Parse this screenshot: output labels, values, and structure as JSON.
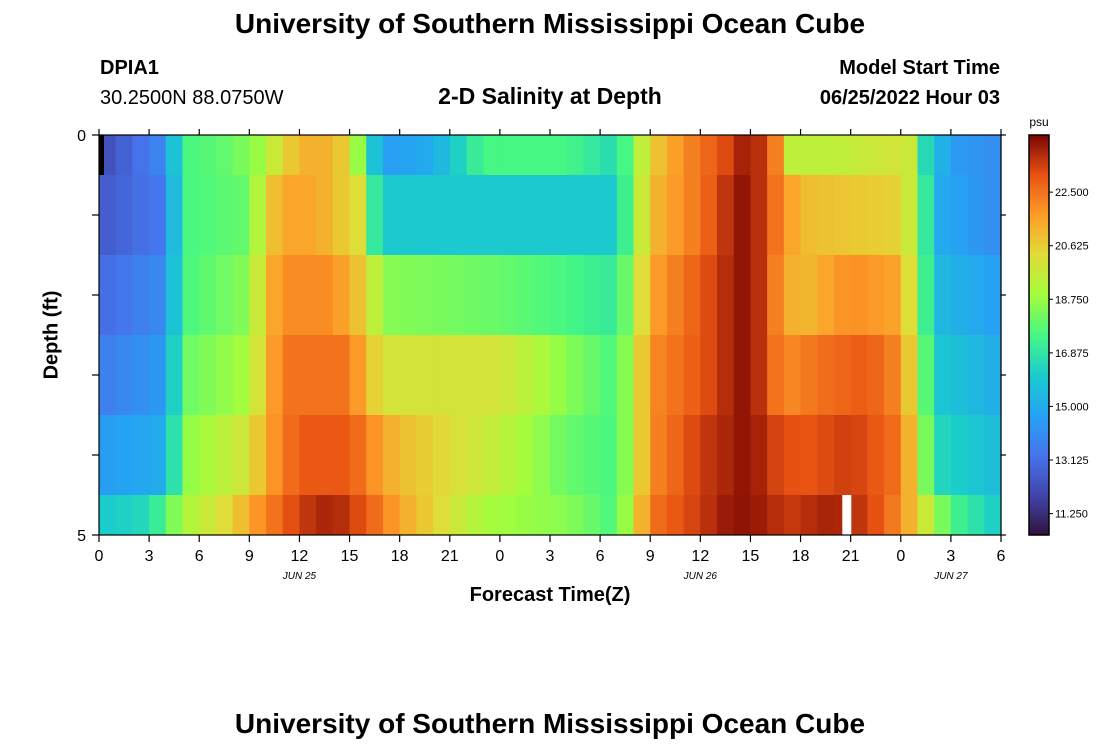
{
  "page": {
    "title_top": "University of Southern Mississippi Ocean Cube",
    "title_bottom": "University of Southern Mississippi Ocean Cube",
    "station_id": "DPIA1",
    "station_coords": "30.2500N  88.0750W",
    "plot_title": "2-D Salinity at Depth",
    "model_start_label": "Model Start Time",
    "model_start_value": "06/25/2022 Hour 03"
  },
  "chart_data": {
    "type": "heatmap",
    "title": "2-D Salinity at Depth",
    "xlabel": "Forecast Time(Z)",
    "ylabel": "Depth (ft)",
    "x_ticks": [
      "0",
      "3",
      "6",
      "9",
      "12",
      "15",
      "18",
      "21",
      "0",
      "3",
      "6",
      "9",
      "12",
      "15",
      "18",
      "21",
      "0",
      "3",
      "6"
    ],
    "date_labels": [
      {
        "text": "JUN 25",
        "hour": 12
      },
      {
        "text": "JUN 26",
        "hour": 36
      },
      {
        "text": "JUN 27",
        "hour": 51
      }
    ],
    "x_range_hours": [
      0,
      54
    ],
    "y_ticks": [
      "0",
      "5"
    ],
    "y_range": [
      0,
      5
    ],
    "depth_levels": 6,
    "colorbar": {
      "unit": "psu",
      "vmin": 10.5,
      "vmax": 24.5,
      "labels": [
        "22.500",
        "20.625",
        "18.750",
        "16.875",
        "15.000",
        "13.125",
        "11.250"
      ],
      "label_values": [
        22.5,
        20.625,
        18.75,
        16.875,
        15.0,
        13.125,
        11.25
      ]
    },
    "missing_cells": [
      {
        "row": 0,
        "hour": 0
      },
      {
        "row": 5,
        "hour": 44.5
      }
    ],
    "profiles": [
      [
        [
          0,
          12.0
        ],
        [
          4,
          14.0
        ],
        [
          5,
          17.5
        ],
        [
          8,
          18.0
        ],
        [
          10,
          19.0
        ],
        [
          11,
          20.5
        ],
        [
          13,
          21.5
        ],
        [
          15,
          20.5
        ],
        [
          16,
          17.0
        ],
        [
          17,
          14.5
        ],
        [
          20,
          15.0
        ],
        [
          23,
          17.5
        ],
        [
          28,
          17.5
        ],
        [
          31,
          16.5
        ],
        [
          32,
          18.5
        ],
        [
          33,
          20.5
        ],
        [
          35,
          22.0
        ],
        [
          38,
          23.5
        ],
        [
          39,
          24.4
        ],
        [
          40,
          23.0
        ],
        [
          41,
          21.5
        ],
        [
          41.5,
          19.5
        ],
        [
          44,
          19.5
        ],
        [
          48,
          20.0
        ],
        [
          49,
          19.5
        ],
        [
          49.5,
          16.5
        ],
        [
          51,
          14.5
        ],
        [
          54,
          14.0
        ]
      ],
      [
        [
          0,
          12.5
        ],
        [
          4,
          13.5
        ],
        [
          5,
          17.5
        ],
        [
          9,
          18.0
        ],
        [
          10,
          20.5
        ],
        [
          11,
          21.5
        ],
        [
          13,
          21.5
        ],
        [
          16,
          20.0
        ],
        [
          16.5,
          17.0
        ],
        [
          17,
          16.0
        ],
        [
          24,
          16.0
        ],
        [
          28,
          16.0
        ],
        [
          31,
          16.0
        ],
        [
          32,
          18.5
        ],
        [
          33,
          21.0
        ],
        [
          36,
          22.5
        ],
        [
          38,
          24.0
        ],
        [
          39,
          24.4
        ],
        [
          40,
          23.0
        ],
        [
          41,
          22.0
        ],
        [
          42,
          21.0
        ],
        [
          48,
          20.5
        ],
        [
          49,
          19.0
        ],
        [
          50,
          15.0
        ],
        [
          54,
          14.0
        ]
      ],
      [
        [
          0,
          13.0
        ],
        [
          4,
          14.0
        ],
        [
          5,
          17.5
        ],
        [
          9,
          18.5
        ],
        [
          10,
          21.0
        ],
        [
          11,
          22.0
        ],
        [
          14,
          22.0
        ],
        [
          16,
          20.5
        ],
        [
          17,
          18.5
        ],
        [
          24,
          18.0
        ],
        [
          28,
          17.5
        ],
        [
          31,
          17.0
        ],
        [
          32,
          19.0
        ],
        [
          33,
          21.5
        ],
        [
          36,
          23.0
        ],
        [
          38,
          24.0
        ],
        [
          39,
          24.4
        ],
        [
          40,
          23.0
        ],
        [
          41,
          21.5
        ],
        [
          42,
          21.0
        ],
        [
          45,
          22.0
        ],
        [
          48,
          21.5
        ],
        [
          49,
          19.0
        ],
        [
          50,
          15.5
        ],
        [
          54,
          14.5
        ]
      ],
      [
        [
          0,
          13.5
        ],
        [
          4,
          14.5
        ],
        [
          5,
          18.0
        ],
        [
          9,
          19.0
        ],
        [
          10,
          21.0
        ],
        [
          11,
          22.5
        ],
        [
          15,
          22.5
        ],
        [
          16,
          21.0
        ],
        [
          17,
          20.0
        ],
        [
          24,
          20.0
        ],
        [
          28,
          18.5
        ],
        [
          31,
          17.5
        ],
        [
          32,
          19.5
        ],
        [
          33,
          22.0
        ],
        [
          36,
          23.0
        ],
        [
          38,
          24.0
        ],
        [
          39,
          24.4
        ],
        [
          40,
          23.0
        ],
        [
          41,
          22.0
        ],
        [
          43,
          22.5
        ],
        [
          46,
          23.0
        ],
        [
          48,
          22.0
        ],
        [
          49,
          19.5
        ],
        [
          50,
          16.0
        ],
        [
          54,
          15.0
        ]
      ],
      [
        [
          0,
          14.5
        ],
        [
          4,
          15.0
        ],
        [
          5,
          18.5
        ],
        [
          9,
          20.0
        ],
        [
          10,
          21.5
        ],
        [
          12,
          23.0
        ],
        [
          15,
          23.0
        ],
        [
          17,
          21.5
        ],
        [
          18,
          21.0
        ],
        [
          24,
          19.5
        ],
        [
          28,
          18.0
        ],
        [
          31,
          17.5
        ],
        [
          32,
          19.5
        ],
        [
          33,
          22.0
        ],
        [
          36,
          23.5
        ],
        [
          38,
          24.0
        ],
        [
          39,
          24.4
        ],
        [
          40,
          23.5
        ],
        [
          42,
          23.0
        ],
        [
          45,
          23.5
        ],
        [
          48,
          22.5
        ],
        [
          49,
          20.0
        ],
        [
          50,
          16.5
        ],
        [
          54,
          15.5
        ]
      ],
      [
        [
          0,
          16.0
        ],
        [
          3,
          16.5
        ],
        [
          5,
          19.0
        ],
        [
          8,
          20.5
        ],
        [
          9,
          21.5
        ],
        [
          12,
          23.5
        ],
        [
          14,
          24.0
        ],
        [
          16,
          23.0
        ],
        [
          18,
          21.5
        ],
        [
          20,
          20.5
        ],
        [
          23,
          19.0
        ],
        [
          28,
          18.5
        ],
        [
          31,
          17.5
        ],
        [
          32,
          20.0
        ],
        [
          33,
          22.5
        ],
        [
          36,
          23.5
        ],
        [
          38,
          24.3
        ],
        [
          40,
          24.0
        ],
        [
          41,
          23.5
        ],
        [
          44,
          24.0
        ],
        [
          46,
          23.5
        ],
        [
          48,
          22.0
        ],
        [
          49,
          20.5
        ],
        [
          51,
          17.5
        ],
        [
          54,
          16.0
        ]
      ]
    ]
  }
}
